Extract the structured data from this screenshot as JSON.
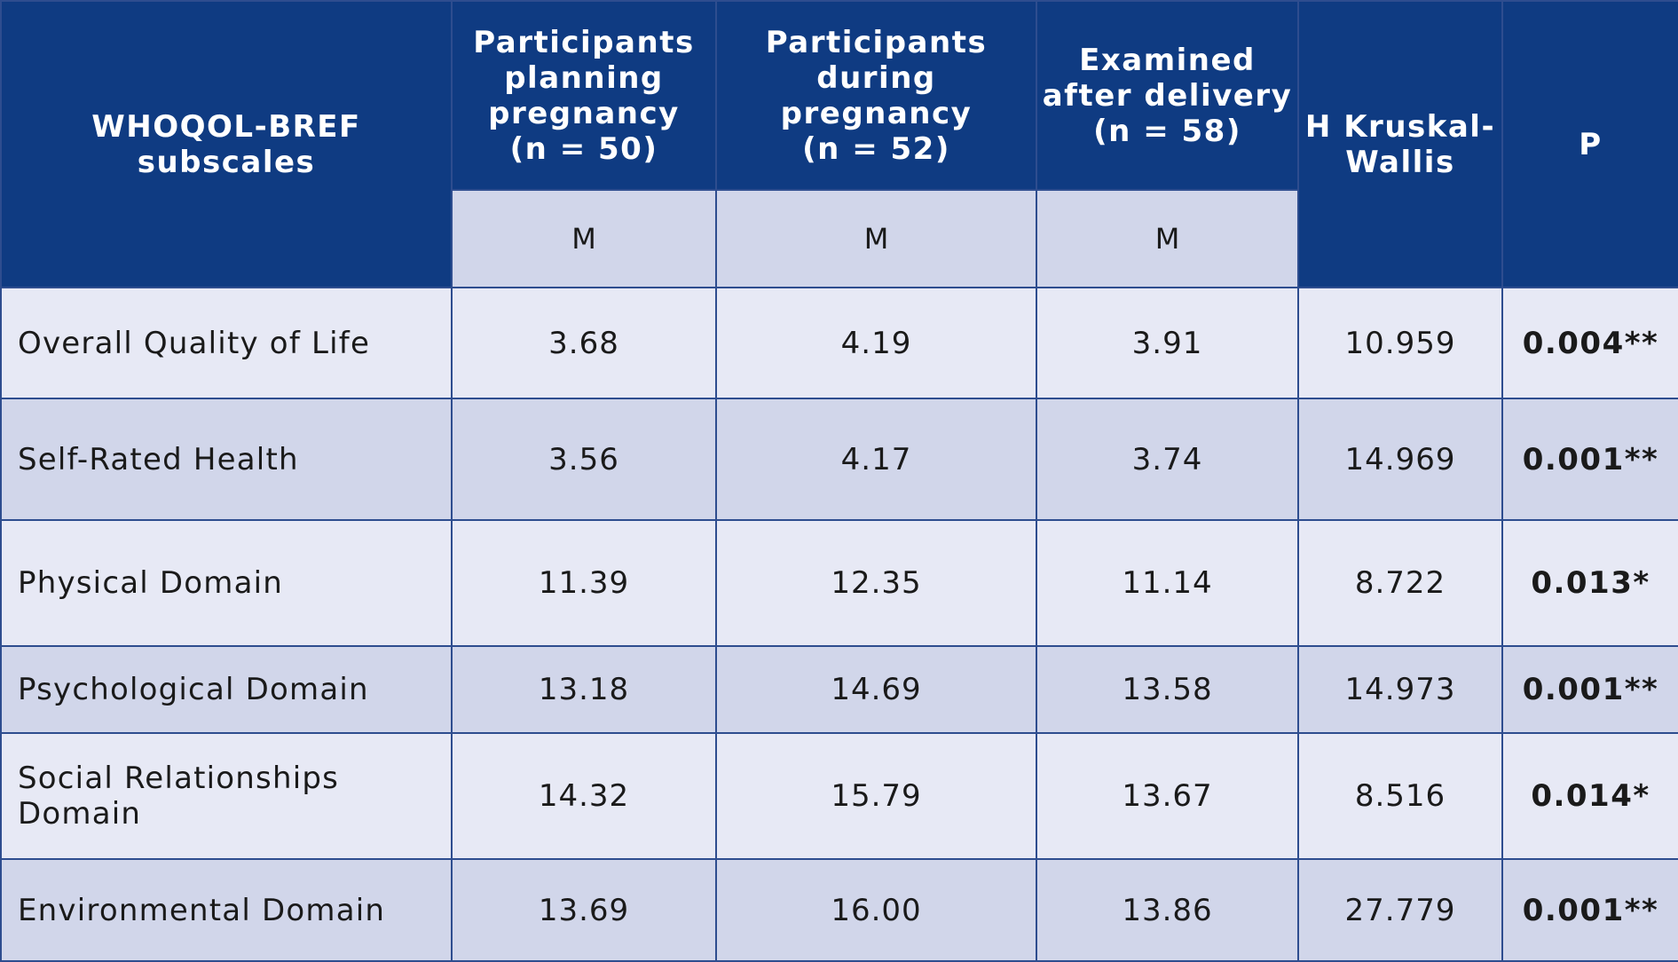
{
  "header": {
    "subscales": "WHOQOL-BREF\nsubscales",
    "group1": "Participants\nplanning\npregnancy\n(n = 50)",
    "group2": "Participants\nduring pregnancy\n(n = 52)",
    "group3": "Examined\nafter delivery\n(n = 58)",
    "h_stat": "H Kruskal-\nWallis",
    "p": "P",
    "mean_label": "M"
  },
  "rows": [
    {
      "label": "Overall Quality of Life",
      "g1": "3.68",
      "g2": "4.19",
      "g3": "3.91",
      "h": "10.959",
      "p": "0.004**"
    },
    {
      "label": "Self-Rated Health",
      "g1": "3.56",
      "g2": "4.17",
      "g3": "3.74",
      "h": "14.969",
      "p": "0.001**"
    },
    {
      "label": "Physical Domain",
      "g1": "11.39",
      "g2": "12.35",
      "g3": "11.14",
      "h": "8.722",
      "p": "0.013*"
    },
    {
      "label": "Psychological Domain",
      "g1": "13.18",
      "g2": "14.69",
      "g3": "13.58",
      "h": "14.973",
      "p": "0.001**"
    },
    {
      "label": "Social Relationships Domain",
      "g1": "14.32",
      "g2": "15.79",
      "g3": "13.67",
      "h": "8.516",
      "p": "0.014*"
    },
    {
      "label": "Environmental Domain",
      "g1": "13.69",
      "g2": "16.00",
      "g3": "13.86",
      "h": "27.779",
      "p": "0.001**"
    }
  ]
}
